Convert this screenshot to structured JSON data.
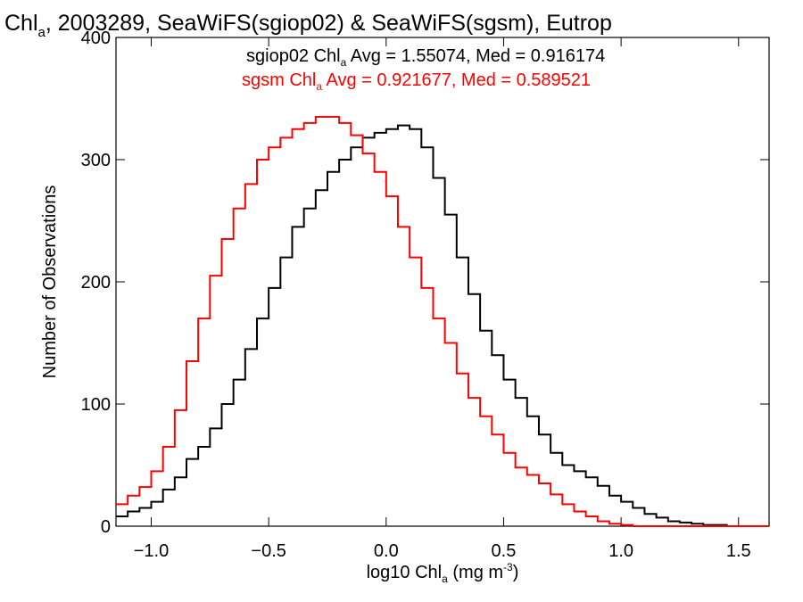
{
  "chart_data": {
    "type": "line",
    "title": {
      "pre": "Chl",
      "sub": "a",
      "post": ", 2003289, SeaWiFS(sgiop02) & SeaWiFS(sgsm), Eutrop"
    },
    "xlabel": {
      "pre": "log10 Chl",
      "sub": "a",
      "mid": " (mg m",
      "sup": "-3",
      "post": ")"
    },
    "ylabel": "Number of Observations",
    "xlim": [
      -1.15,
      1.63
    ],
    "ylim": [
      0,
      400
    ],
    "xticks": [
      {
        "value": -1.0,
        "label": "−1.0"
      },
      {
        "value": -0.5,
        "label": "−0.5"
      },
      {
        "value": 0.0,
        "label": "0.0"
      },
      {
        "value": 0.5,
        "label": "0.5"
      },
      {
        "value": 1.0,
        "label": "1.0"
      },
      {
        "value": 1.5,
        "label": "1.5"
      }
    ],
    "yticks": [
      {
        "value": 0,
        "label": "0"
      },
      {
        "value": 100,
        "label": "100"
      },
      {
        "value": 200,
        "label": "200"
      },
      {
        "value": 300,
        "label": "300"
      },
      {
        "value": 400,
        "label": "400"
      }
    ],
    "annotations": [
      {
        "pre": "sgiop02 Chl",
        "sub": "a",
        "post": " Avg = 1.55074, Med = 0.916174",
        "color": "#000000"
      },
      {
        "pre": "sgsm Chl",
        "sub": "a",
        "post": " Avg = 0.921677, Med = 0.589521",
        "color": "#ff0000"
      }
    ],
    "series": [
      {
        "color": "#000000",
        "x": [
          -1.15,
          -1.1,
          -1.05,
          -1.0,
          -0.95,
          -0.9,
          -0.85,
          -0.8,
          -0.75,
          -0.7,
          -0.65,
          -0.6,
          -0.55,
          -0.5,
          -0.45,
          -0.4,
          -0.35,
          -0.3,
          -0.25,
          -0.2,
          -0.15,
          -0.1,
          -0.05,
          0.0,
          0.05,
          0.1,
          0.15,
          0.2,
          0.25,
          0.3,
          0.35,
          0.4,
          0.45,
          0.5,
          0.55,
          0.6,
          0.65,
          0.7,
          0.75,
          0.8,
          0.85,
          0.9,
          0.95,
          1.0,
          1.05,
          1.1,
          1.15,
          1.2,
          1.25,
          1.3,
          1.35,
          1.4,
          1.45,
          1.5,
          1.55,
          1.6
        ],
        "y": [
          8,
          12,
          15,
          20,
          30,
          40,
          55,
          65,
          80,
          100,
          120,
          145,
          170,
          195,
          220,
          245,
          260,
          275,
          290,
          300,
          310,
          318,
          322,
          325,
          328,
          325,
          310,
          285,
          255,
          220,
          190,
          160,
          140,
          120,
          105,
          90,
          75,
          60,
          50,
          45,
          40,
          33,
          25,
          20,
          15,
          10,
          7,
          4,
          3,
          2,
          1,
          1,
          0,
          0,
          0,
          0
        ]
      },
      {
        "color": "#ff0000",
        "x": [
          -1.15,
          -1.1,
          -1.05,
          -1.0,
          -0.95,
          -0.9,
          -0.85,
          -0.8,
          -0.75,
          -0.7,
          -0.65,
          -0.6,
          -0.55,
          -0.5,
          -0.45,
          -0.4,
          -0.35,
          -0.3,
          -0.25,
          -0.2,
          -0.15,
          -0.1,
          -0.05,
          0.0,
          0.05,
          0.1,
          0.15,
          0.2,
          0.25,
          0.3,
          0.35,
          0.4,
          0.45,
          0.5,
          0.55,
          0.6,
          0.65,
          0.7,
          0.75,
          0.8,
          0.85,
          0.9,
          0.95,
          1.0,
          1.05,
          1.1,
          1.15,
          1.2,
          1.25,
          1.3,
          1.35,
          1.4,
          1.45,
          1.5,
          1.55,
          1.6
        ],
        "y": [
          18,
          25,
          32,
          45,
          65,
          95,
          135,
          170,
          205,
          235,
          260,
          280,
          300,
          310,
          318,
          325,
          330,
          335,
          335,
          330,
          320,
          305,
          290,
          270,
          245,
          220,
          195,
          170,
          150,
          125,
          105,
          90,
          75,
          60,
          48,
          42,
          35,
          26,
          18,
          12,
          8,
          4,
          2,
          1,
          0,
          0,
          0,
          0,
          0,
          0,
          0,
          0,
          0,
          0,
          0,
          0
        ]
      }
    ]
  }
}
